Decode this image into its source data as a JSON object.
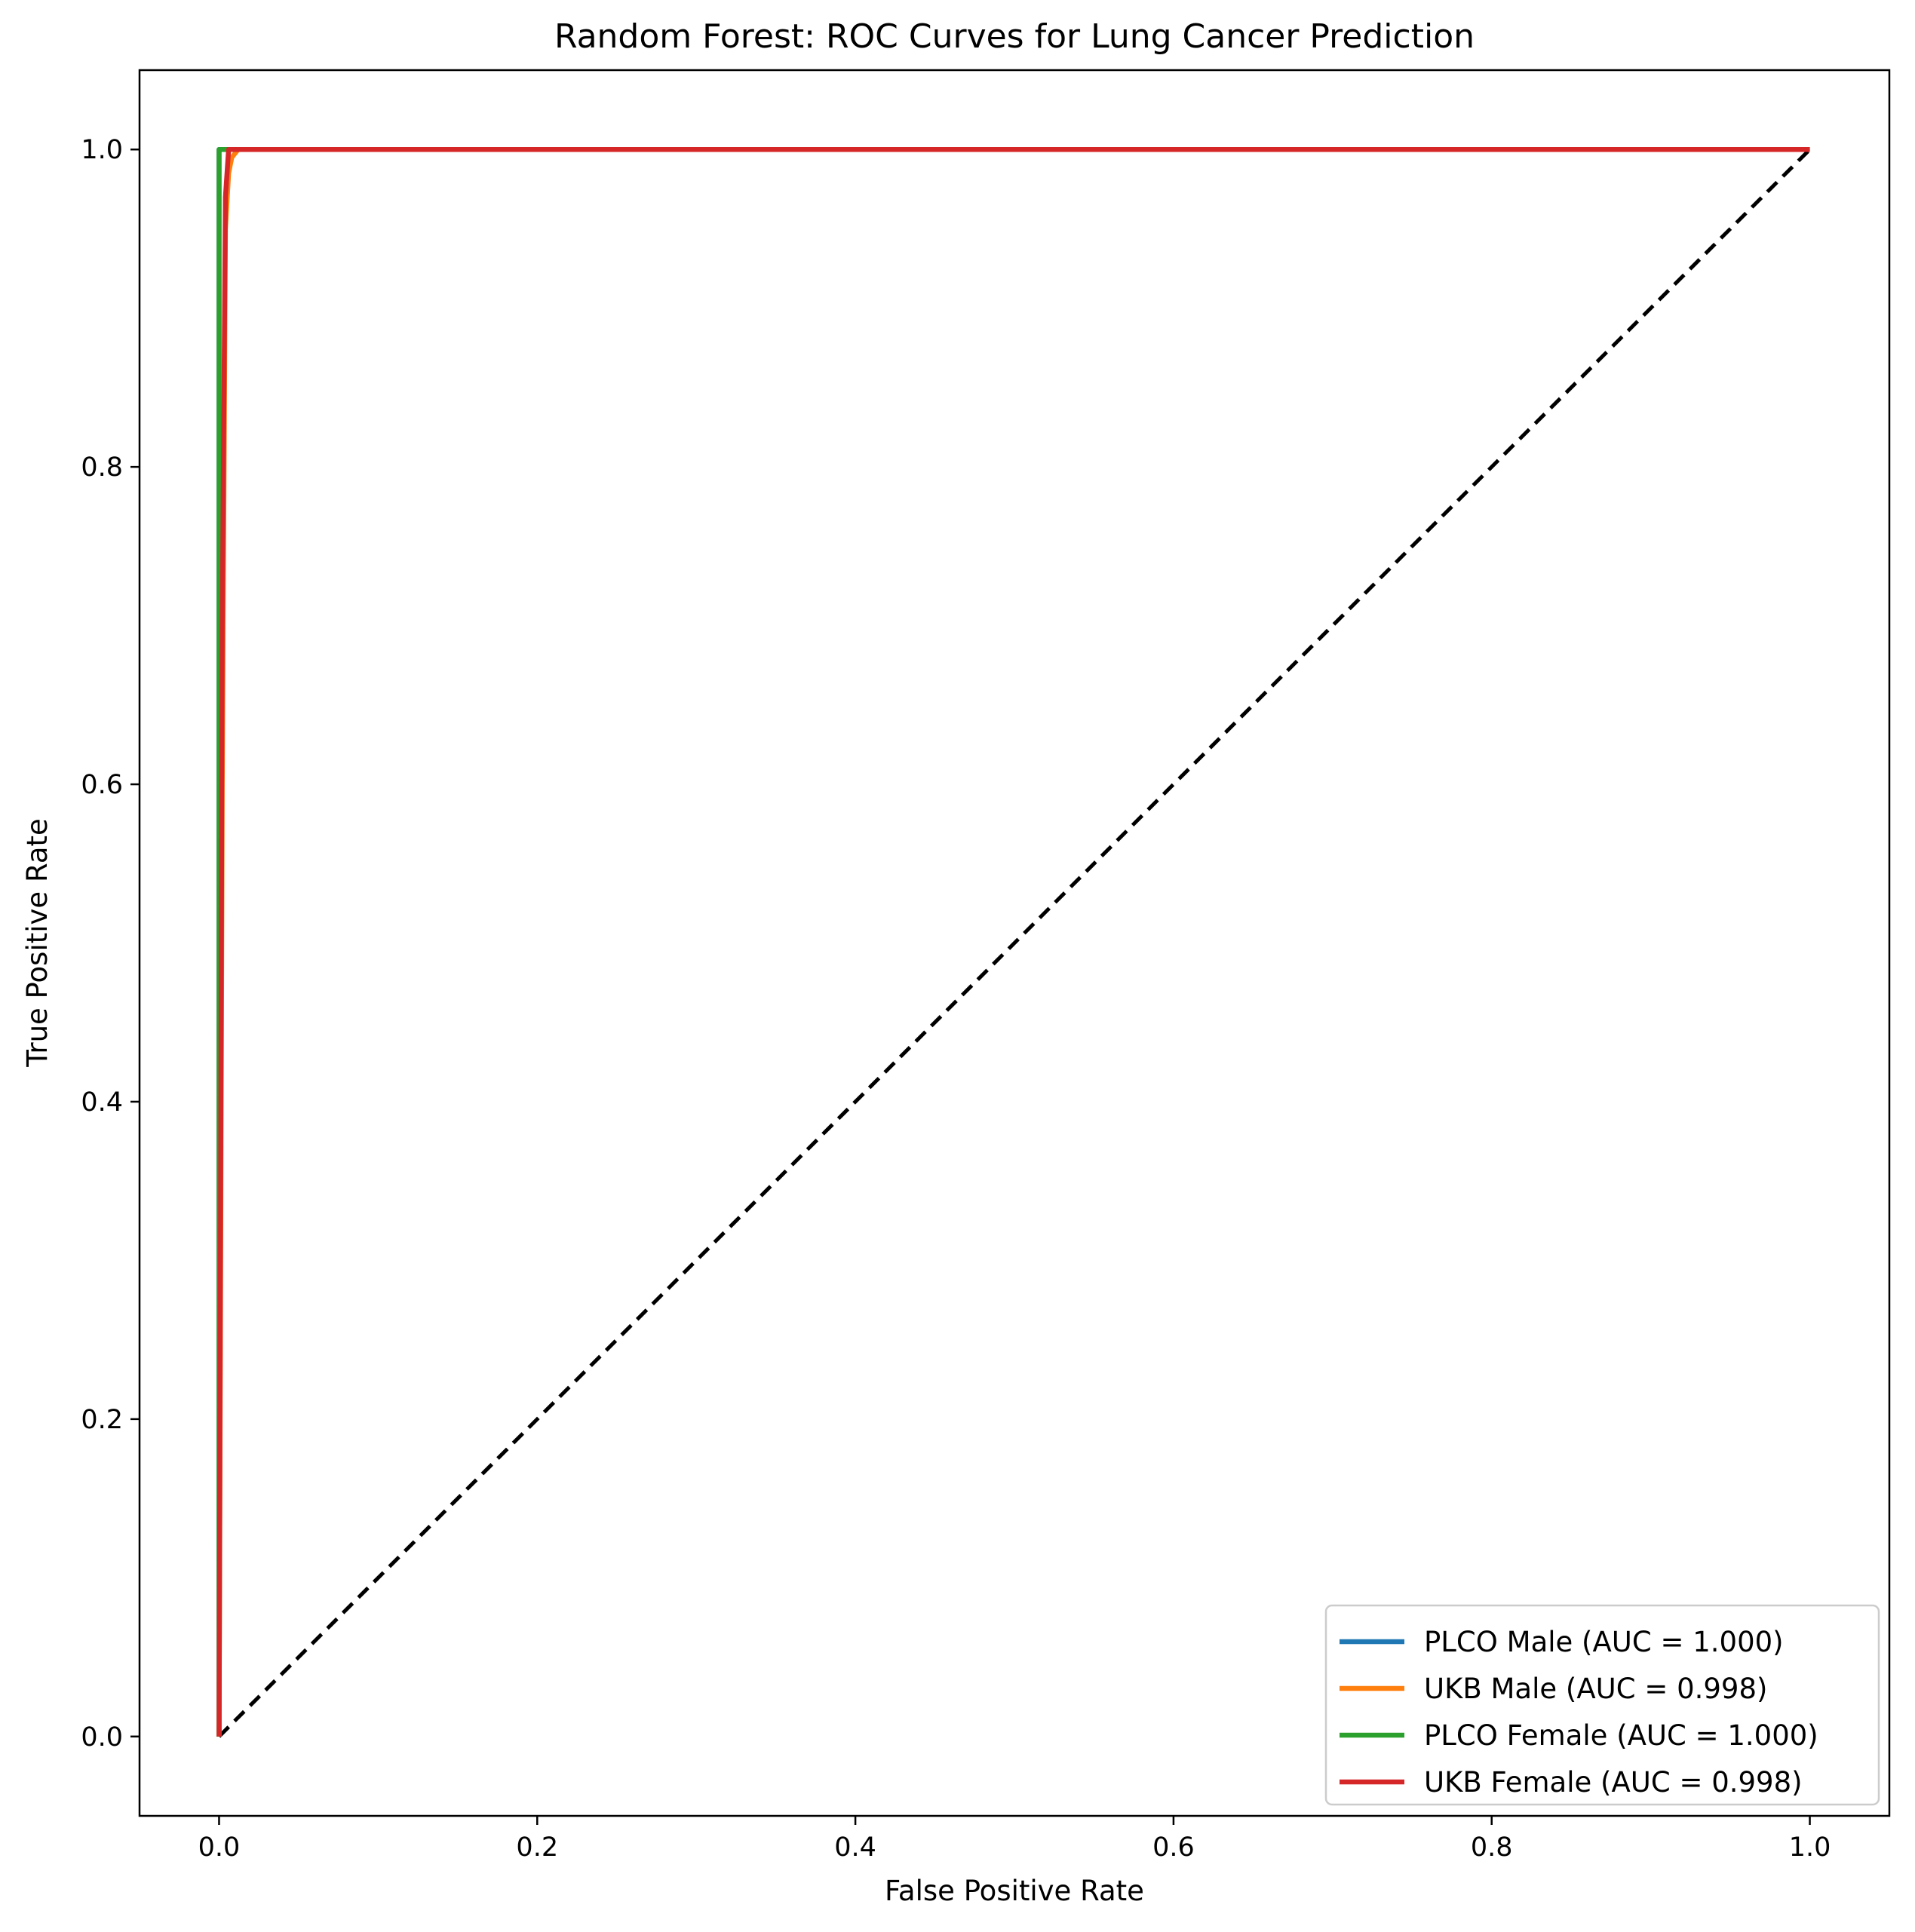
{
  "chart_data": {
    "type": "line",
    "title": "Random Forest: ROC Curves for Lung Cancer Prediction",
    "xlabel": "False Positive Rate",
    "ylabel": "True Positive Rate",
    "xlim": [
      -0.05,
      1.05
    ],
    "ylim": [
      -0.05,
      1.05
    ],
    "xticks": [
      0.0,
      0.2,
      0.4,
      0.6,
      0.8,
      1.0
    ],
    "xtick_labels": [
      "0.0",
      "0.2",
      "0.4",
      "0.6",
      "0.8",
      "1.0"
    ],
    "yticks": [
      0.0,
      0.2,
      0.4,
      0.6,
      0.8,
      1.0
    ],
    "ytick_labels": [
      "0.0",
      "0.2",
      "0.4",
      "0.6",
      "0.8",
      "1.0"
    ],
    "grid": false,
    "legend_position": "bottom-right",
    "series": [
      {
        "name": "PLCO Male (AUC = 1.000)",
        "color": "#1f77b4",
        "x": [
          0.0,
          0.0,
          0.0,
          1.0
        ],
        "y": [
          0.0,
          0.98,
          1.0,
          1.0
        ]
      },
      {
        "name": "UKB Male (AUC = 0.998)",
        "color": "#ff7f0e",
        "x": [
          0.0,
          0.002,
          0.004,
          0.006,
          0.008,
          0.012,
          1.0
        ],
        "y": [
          0.0,
          0.6,
          0.95,
          0.985,
          0.995,
          1.0,
          1.0
        ]
      },
      {
        "name": "PLCO Female (AUC = 1.000)",
        "color": "#2ca02c",
        "x": [
          0.0,
          0.0,
          1.0
        ],
        "y": [
          0.0,
          1.0,
          1.0
        ]
      },
      {
        "name": "UKB Female (AUC = 0.998)",
        "color": "#d62728",
        "x": [
          0.0,
          0.002,
          0.004,
          0.006,
          1.0
        ],
        "y": [
          0.0,
          0.7,
          0.97,
          1.0,
          1.0
        ]
      }
    ],
    "reference_line": {
      "name": "chance",
      "color": "#000000",
      "style": "dashed",
      "x": [
        0.0,
        1.0
      ],
      "y": [
        0.0,
        1.0
      ]
    }
  }
}
